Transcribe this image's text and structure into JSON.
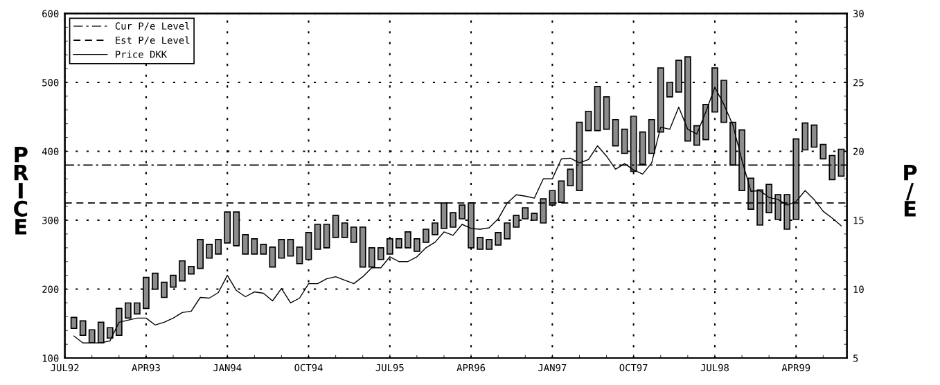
{
  "chart_data": {
    "type": "bar",
    "ylabel": "PRICE",
    "y2label": "P/E",
    "x": [
      "1992-08",
      "1992-09",
      "1992-10",
      "1992-11",
      "1992-12",
      "1993-01",
      "1993-02",
      "1993-03",
      "1993-04",
      "1993-05",
      "1993-06",
      "1993-07",
      "1993-08",
      "1993-09",
      "1993-10",
      "1993-11",
      "1993-12",
      "1994-01",
      "1994-02",
      "1994-03",
      "1994-04",
      "1994-05",
      "1994-06",
      "1994-07",
      "1994-08",
      "1994-09",
      "1994-10",
      "1994-11",
      "1994-12",
      "1995-01",
      "1995-02",
      "1995-03",
      "1995-04",
      "1995-05",
      "1995-06",
      "1995-07",
      "1995-08",
      "1995-09",
      "1995-10",
      "1995-11",
      "1995-12",
      "1996-01",
      "1996-02",
      "1996-03",
      "1996-04",
      "1996-05",
      "1996-06",
      "1996-07",
      "1996-08",
      "1996-09",
      "1996-10",
      "1996-11",
      "1996-12",
      "1997-01",
      "1997-02",
      "1997-03",
      "1997-04",
      "1997-05",
      "1997-06",
      "1997-07",
      "1997-08",
      "1997-09",
      "1997-10",
      "1997-11",
      "1997-12",
      "1998-01",
      "1998-02",
      "1998-03",
      "1998-04",
      "1998-05",
      "1998-06",
      "1998-07",
      "1998-08",
      "1998-09",
      "1998-10",
      "1998-11",
      "1998-12",
      "1999-01",
      "1999-02",
      "1999-03",
      "1999-04",
      "1999-05",
      "1999-06",
      "1999-07",
      "1999-08",
      "1999-09"
    ],
    "series": [
      {
        "color": "#8c8c8c",
        "base": [
          143,
          133,
          122,
          122,
          129,
          133,
          158,
          164,
          172,
          200,
          188,
          203,
          212,
          222,
          230,
          245,
          251,
          267,
          263,
          251,
          251,
          251,
          232,
          245,
          248,
          237,
          243,
          258,
          260,
          275,
          275,
          268,
          232,
          232,
          243,
          251,
          260,
          260,
          255,
          268,
          279,
          288,
          290,
          302,
          260,
          258,
          258,
          264,
          273,
          290,
          302,
          300,
          296,
          322,
          326,
          350,
          343,
          430,
          430,
          432,
          408,
          397,
          371,
          381,
          397,
          428,
          479,
          486,
          415,
          409,
          417,
          457,
          442,
          380,
          343,
          316,
          293,
          311,
          301,
          287,
          301,
          402,
          406,
          389,
          359,
          364
        ],
        "values": [
          16,
          21,
          19,
          30,
          15,
          39,
          22,
          16,
          45,
          23,
          22,
          17,
          29,
          11,
          42,
          20,
          21,
          45,
          49,
          28,
          22,
          14,
          29,
          27,
          24,
          24,
          39,
          36,
          34,
          32,
          21,
          22,
          58,
          28,
          17,
          22,
          13,
          23,
          18,
          19,
          17,
          37,
          21,
          20,
          65,
          17,
          14,
          18,
          23,
          17,
          16,
          10,
          35,
          21,
          31,
          24,
          99,
          28,
          64,
          47,
          38,
          35,
          80,
          47,
          49,
          93,
          21,
          46,
          122,
          28,
          51,
          64,
          61,
          62,
          88,
          45,
          51,
          41,
          36,
          50,
          117,
          39,
          32,
          21,
          35,
          39
        ]
      },
      {
        "type": "line",
        "name": "Price DKK",
        "color": "#000000",
        "line_style": "solid",
        "values": [
          132,
          122,
          122,
          122,
          125,
          152,
          155,
          158,
          158,
          148,
          152,
          158,
          166,
          168,
          188,
          187,
          195,
          220,
          198,
          189,
          196,
          194,
          183,
          201,
          180,
          187,
          208,
          208,
          215,
          218,
          213,
          208,
          218,
          231,
          231,
          247,
          240,
          240,
          247,
          260,
          268,
          283,
          278,
          294,
          288,
          287,
          289,
          302,
          325,
          337,
          335,
          332,
          360,
          360,
          389,
          390,
          383,
          388,
          408,
          393,
          374,
          382,
          373,
          367,
          383,
          435,
          432,
          464,
          432,
          425,
          457,
          493,
          468,
          438,
          387,
          342,
          343,
          333,
          330,
          322,
          327,
          343,
          330,
          313,
          303,
          292
        ]
      }
    ],
    "ylim": [
      100,
      600
    ],
    "yticks": [
      100,
      200,
      300,
      400,
      500,
      600
    ],
    "y2lim": [
      5,
      30
    ],
    "y2ticks": [
      5,
      10,
      15,
      20,
      25,
      30
    ],
    "xlim": [
      "1992-07",
      "1999-09-20"
    ],
    "xticks": [
      {
        "value": "1992-07",
        "label": "JUL92"
      },
      {
        "value": "1993-04",
        "label": "APR93"
      },
      {
        "value": "1994-01",
        "label": "JAN94"
      },
      {
        "value": "1994-10",
        "label": "OCT94"
      },
      {
        "value": "1995-07",
        "label": "JUL95"
      },
      {
        "value": "1996-04",
        "label": "APR96"
      },
      {
        "value": "1997-01",
        "label": "JAN97"
      },
      {
        "value": "1997-10",
        "label": "OCT97"
      },
      {
        "value": "1998-07",
        "label": "JUL98"
      },
      {
        "value": "1999-04",
        "label": "APR99"
      }
    ],
    "ref_lines": [
      {
        "axis": "y2",
        "value": 19,
        "label": "Cur P/e Level",
        "line_style": "dashdot",
        "color": "#000000"
      },
      {
        "axis": "y2",
        "value": 16.25,
        "label": "Est P/e Level",
        "line_style": "dashed",
        "color": "#000000"
      }
    ],
    "grid": true,
    "legend": "top left"
  }
}
